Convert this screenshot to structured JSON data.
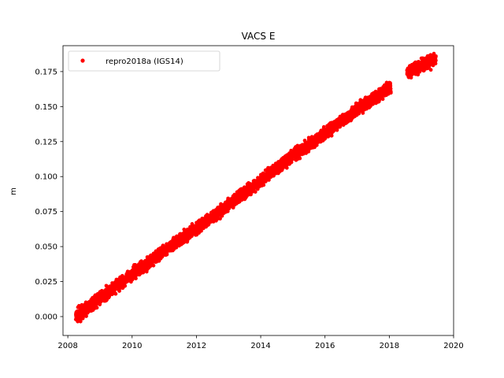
{
  "chart_data": {
    "type": "scatter",
    "title": "VACS E",
    "xlabel": "",
    "ylabel": "m",
    "xlim": [
      2007.85,
      2020.0
    ],
    "ylim": [
      -0.0135,
      0.1935
    ],
    "x_ticks": [
      2008,
      2010,
      2012,
      2014,
      2016,
      2018,
      2020
    ],
    "x_tick_labels": [
      "2008",
      "2010",
      "2012",
      "2014",
      "2016",
      "2018",
      "2020"
    ],
    "y_ticks": [
      0.0,
      0.025,
      0.05,
      0.075,
      0.1,
      0.125,
      0.15,
      0.175
    ],
    "y_tick_labels": [
      "0.000",
      "0.025",
      "0.050",
      "0.075",
      "0.100",
      "0.125",
      "0.150",
      "0.175"
    ],
    "grid": false,
    "legend_position": "top-left",
    "series": [
      {
        "name": "repro2018a (IGS14)",
        "color": "#ff0000",
        "marker": "circle",
        "trend": [
          {
            "x": 2008.25,
            "y": 0.0
          },
          {
            "x": 2009.0,
            "y": 0.013
          },
          {
            "x": 2010.0,
            "y": 0.03
          },
          {
            "x": 2011.0,
            "y": 0.047
          },
          {
            "x": 2012.0,
            "y": 0.063
          },
          {
            "x": 2013.0,
            "y": 0.08
          },
          {
            "x": 2014.0,
            "y": 0.097
          },
          {
            "x": 2015.0,
            "y": 0.115
          },
          {
            "x": 2016.0,
            "y": 0.131
          },
          {
            "x": 2017.0,
            "y": 0.148
          },
          {
            "x": 2018.05,
            "y": 0.164
          },
          {
            "x": 2018.55,
            "y": 0.174
          },
          {
            "x": 2019.45,
            "y": 0.184
          }
        ],
        "gap": [
          2018.05,
          2018.55
        ],
        "scatter_amplitude": 0.0035
      }
    ]
  }
}
